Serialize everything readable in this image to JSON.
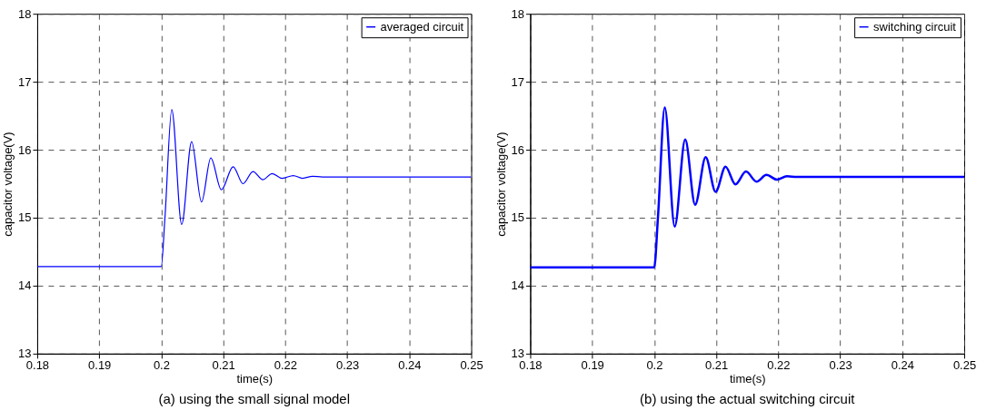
{
  "chart_data": [
    {
      "type": "line",
      "title": "(a) using the small signal model",
      "xlabel": "time(s)",
      "ylabel": "capacitor voltage(V)",
      "xlim": [
        0.18,
        0.25
      ],
      "ylim": [
        13,
        18
      ],
      "xticks": [
        0.18,
        0.19,
        0.2,
        0.21,
        0.22,
        0.23,
        0.24,
        0.25
      ],
      "yticks": [
        13,
        14,
        15,
        16,
        17,
        18
      ],
      "grid": true,
      "legend": "top right",
      "line_style": "solid",
      "series": [
        {
          "name": "averaged circuit",
          "color": "#0000ff",
          "x": [
            0.18,
            0.2,
            0.2006,
            0.2017,
            0.2033,
            0.2049,
            0.2065,
            0.208,
            0.2097,
            0.2116,
            0.2132,
            0.2148,
            0.2164,
            0.2179,
            0.2195,
            0.2213,
            0.2228,
            0.2244,
            0.226,
            0.25
          ],
          "values": [
            14.28,
            14.28,
            15.0,
            16.59,
            14.9,
            16.12,
            15.23,
            15.88,
            15.41,
            15.75,
            15.5,
            15.68,
            15.56,
            15.65,
            15.58,
            15.62,
            15.58,
            15.61,
            15.6,
            15.6
          ]
        }
      ]
    },
    {
      "type": "line",
      "title": "(b) using the actual switching circuit",
      "xlabel": "time(s)",
      "ylabel": "capacitor voltage(V)",
      "xlim": [
        0.18,
        0.25
      ],
      "ylim": [
        13,
        18
      ],
      "xticks": [
        0.18,
        0.19,
        0.2,
        0.21,
        0.22,
        0.23,
        0.24,
        0.25
      ],
      "yticks": [
        13,
        14,
        15,
        16,
        17,
        18
      ],
      "grid": true,
      "legend": "top right",
      "line_style": "solid",
      "series": [
        {
          "name": "switching circuit",
          "color": "#0000ff",
          "x": [
            0.18,
            0.2,
            0.2006,
            0.2017,
            0.2033,
            0.205,
            0.2066,
            0.2083,
            0.2099,
            0.2115,
            0.2131,
            0.2148,
            0.2165,
            0.2181,
            0.2198,
            0.2214,
            0.223,
            0.25
          ],
          "values": [
            14.27,
            14.27,
            15.0,
            16.62,
            14.87,
            16.15,
            15.19,
            15.89,
            15.38,
            15.75,
            15.49,
            15.68,
            15.53,
            15.63,
            15.56,
            15.61,
            15.6,
            15.6
          ]
        }
      ]
    }
  ]
}
